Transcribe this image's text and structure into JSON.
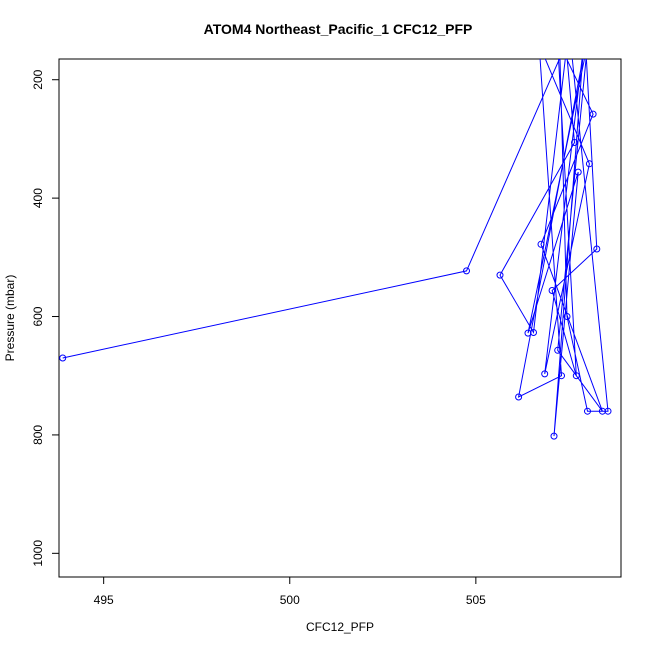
{
  "chart_data": {
    "type": "line",
    "title": "ATOM4 Northeast_Pacific_1 CFC12_PFP",
    "xlabel": "CFC12_PFP",
    "ylabel": "Pressure (mbar)",
    "xlim": [
      493.8,
      508.9
    ],
    "ylim": [
      1040,
      165
    ],
    "y_reversed": true,
    "x_ticks": [
      495,
      500,
      505
    ],
    "y_ticks": [
      200,
      400,
      600,
      800,
      1000
    ],
    "color": "#0000ff",
    "grid": false,
    "series": [
      {
        "x": [
          493.9,
          504.75,
          507.42,
          507.65,
          505.65,
          506.55,
          507.45,
          507.25,
          508.15,
          506.75,
          508.4,
          507.2,
          508.0,
          506.4,
          507.75,
          507.1,
          507.9,
          506.85,
          508.05,
          506.7,
          507.3,
          506.15,
          507.95,
          508.25,
          507.05,
          507.7,
          507.2,
          507.55,
          508.55,
          508.0,
          507.45,
          507.25
        ],
        "y": [
          670,
          523,
          140,
          306,
          530,
          627,
          140,
          140,
          258,
          478,
          760,
          657,
          140,
          628,
          356,
          802,
          140,
          697,
          342,
          140,
          700,
          736,
          140,
          486,
          556,
          700,
          140,
          140,
          760,
          760,
          600,
          140
        ]
      }
    ]
  }
}
